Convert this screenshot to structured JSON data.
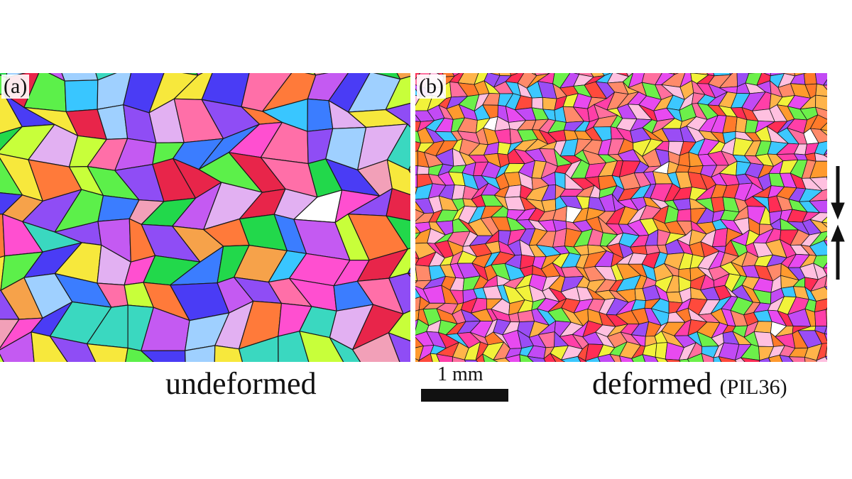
{
  "panels": [
    {
      "label": "(a)",
      "caption": "undeformed"
    },
    {
      "label": "(b)",
      "caption": "deformed",
      "sample": "(PIL36)"
    }
  ],
  "scale_bar": {
    "label": "1 mm"
  },
  "colors": {
    "grain_palette_undeformed": [
      "#e8254a",
      "#ff7a3a",
      "#f6a24a",
      "#f7e83c",
      "#c8ff3a",
      "#5cf04a",
      "#22d84b",
      "#3ad8c0",
      "#39c6ff",
      "#3b7dff",
      "#4a3cf5",
      "#8f4df5",
      "#c45af2",
      "#ff4fd0",
      "#ff6fa8",
      "#f2a0b8",
      "#e2b0f2",
      "#9fd0ff"
    ],
    "grain_palette_deformed": [
      "#ff2d55",
      "#ff4a3c",
      "#ff7a2a",
      "#ff9a2e",
      "#ffb44a",
      "#f2f23a",
      "#ff3fa8",
      "#e84af0",
      "#c24af5",
      "#9a4df5",
      "#ff6f9e",
      "#ff8a6a",
      "#6cf04a",
      "#3cc8ff",
      "#ffc0e0"
    ],
    "grain_boundary": "#1a1a1a",
    "arrow": "#111111"
  }
}
